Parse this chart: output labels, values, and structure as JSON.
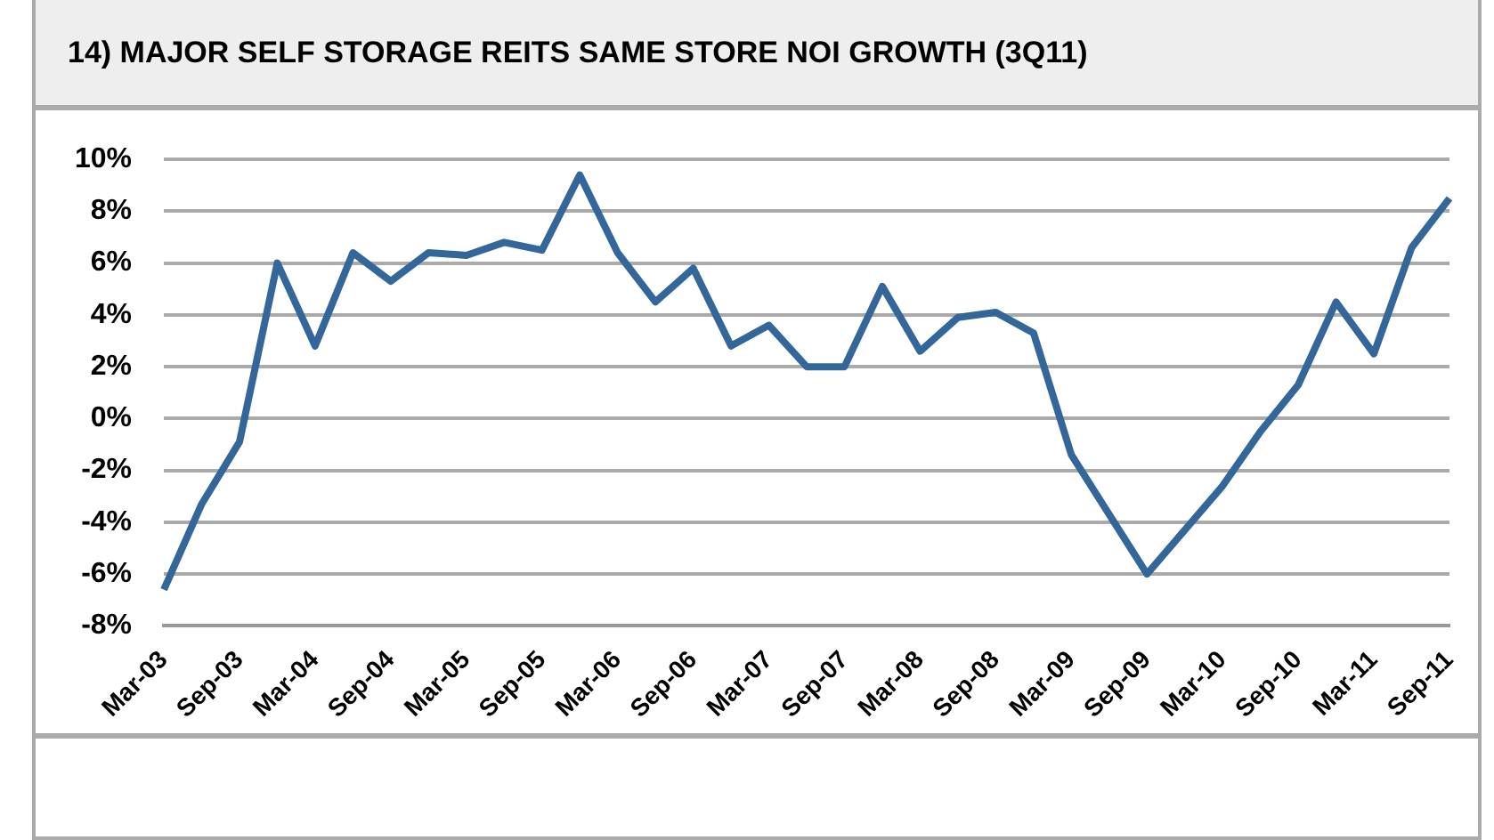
{
  "chart_data": {
    "type": "line",
    "title": "14) MAJOR SELF STORAGE REITS SAME STORE NOI GROWTH (3Q11)",
    "categories": [
      "Mar-03",
      null,
      "Sep-03",
      null,
      "Mar-04",
      null,
      "Sep-04",
      null,
      "Mar-05",
      null,
      "Sep-05",
      null,
      "Mar-06",
      null,
      "Sep-06",
      null,
      "Mar-07",
      null,
      "Sep-07",
      null,
      "Mar-08",
      null,
      "Sep-08",
      null,
      "Mar-09",
      null,
      "Sep-09",
      null,
      "Mar-10",
      null,
      "Sep-10",
      null,
      "Mar-11",
      null,
      "Sep-11"
    ],
    "series": [
      {
        "color": "#336699",
        "values": [
          -6.6,
          -3.3,
          -0.9,
          6.0,
          2.8,
          6.4,
          5.3,
          6.4,
          6.3,
          6.8,
          6.5,
          9.4,
          6.4,
          4.5,
          5.8,
          2.8,
          3.6,
          2.0,
          2.0,
          5.1,
          2.6,
          3.9,
          4.1,
          3.3,
          -1.4,
          -3.7,
          -6.0,
          -4.3,
          -2.6,
          -0.5,
          1.3,
          4.5,
          2.5,
          6.6,
          8.5
        ]
      }
    ],
    "ylim": [
      -8,
      10
    ],
    "yticks": [
      {
        "value": -8,
        "label": "-8%"
      },
      {
        "value": -6,
        "label": "-6%"
      },
      {
        "value": -4,
        "label": "-4%"
      },
      {
        "value": -2,
        "label": "-2%"
      },
      {
        "value": 0,
        "label": "0%"
      },
      {
        "value": 2,
        "label": "2%"
      },
      {
        "value": 4,
        "label": "4%"
      },
      {
        "value": 6,
        "label": "6%"
      },
      {
        "value": 8,
        "label": "8%"
      },
      {
        "value": 10,
        "label": "10%"
      }
    ],
    "grid": "y",
    "legend": false,
    "marker": "none",
    "line_style": "solid"
  }
}
